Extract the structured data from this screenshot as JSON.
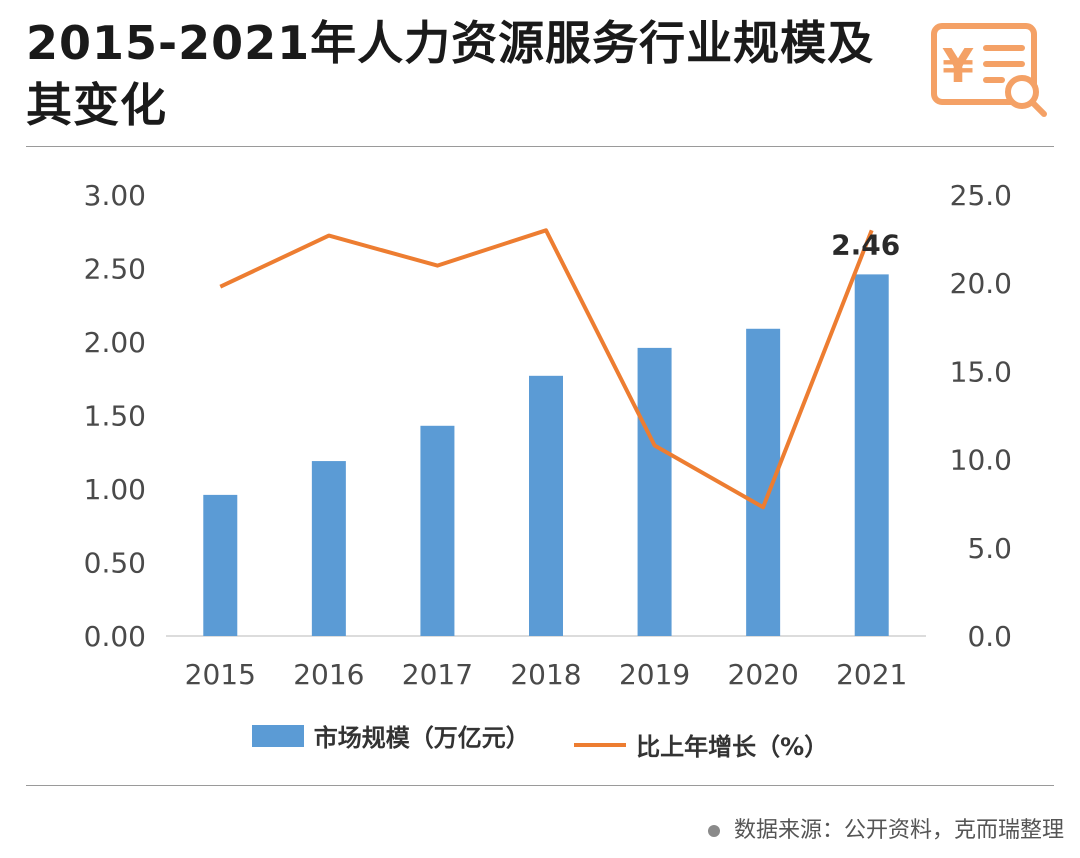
{
  "title": "2015-2021年人力资源服务行业规模及其变化",
  "source": "数据来源：公开资料，克而瑞整理",
  "icons": {
    "header": "yen-receipt-search-icon"
  },
  "colors": {
    "bar": "#5b9bd5",
    "line": "#ed7d31",
    "icon": "#f4a166"
  },
  "chart_data": {
    "type": "bar",
    "categories": [
      "2015",
      "2016",
      "2017",
      "2018",
      "2019",
      "2020",
      "2021"
    ],
    "series": [
      {
        "name": "市场规模（万亿元）",
        "type": "bar",
        "axis": "left",
        "values": [
          0.96,
          1.19,
          1.43,
          1.77,
          1.96,
          2.09,
          2.46
        ]
      },
      {
        "name": "比上年增长（%）",
        "type": "line",
        "axis": "right",
        "values": [
          19.8,
          22.7,
          21.0,
          23.0,
          10.8,
          7.3,
          23.0
        ]
      }
    ],
    "y_left": {
      "ticks": [
        "0.00",
        "0.50",
        "1.00",
        "1.50",
        "2.00",
        "2.50",
        "3.00"
      ],
      "range": [
        0,
        3
      ]
    },
    "y_right": {
      "ticks": [
        "0.0",
        "5.0",
        "10.0",
        "15.0",
        "20.0",
        "25.0"
      ],
      "range": [
        0,
        25
      ]
    },
    "annotations": [
      {
        "label": "2.46",
        "category": "2021"
      }
    ],
    "legend": "bottom",
    "grid": false
  }
}
